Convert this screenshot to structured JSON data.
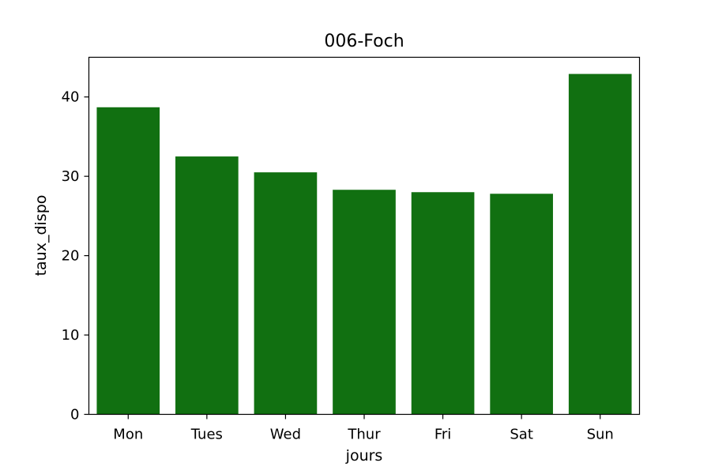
{
  "chart_data": {
    "type": "bar",
    "title": "006-Foch",
    "xlabel": "jours",
    "ylabel": "taux_dispo",
    "categories": [
      "Mon",
      "Tues",
      "Wed",
      "Thur",
      "Fri",
      "Sat",
      "Sun"
    ],
    "values": [
      38.7,
      32.5,
      30.5,
      28.3,
      28.0,
      27.8,
      42.9
    ],
    "ylim": [
      0,
      45
    ],
    "yticks": [
      0,
      10,
      20,
      30,
      40
    ],
    "bar_color": "#117011",
    "grid": false,
    "legend": "none"
  }
}
